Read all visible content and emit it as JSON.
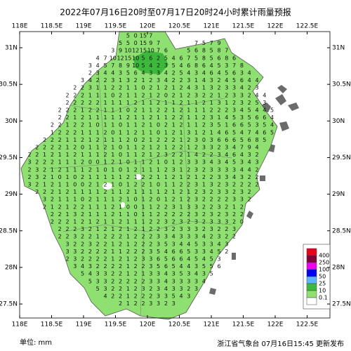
{
  "title": "2022年07月16日20时至07月17日20时24小时累计雨量预报",
  "unit_label": "单位: mm",
  "issuer": "浙江省气象台 07月16日15:45 更新发布",
  "lon_ticks": [
    {
      "value": 118,
      "label": "118E"
    },
    {
      "value": 118.5,
      "label": "118.5E"
    },
    {
      "value": 119,
      "label": "119E"
    },
    {
      "value": 119.5,
      "label": "119.5E"
    },
    {
      "value": 120,
      "label": "120E"
    },
    {
      "value": 120.5,
      "label": "120.5E"
    },
    {
      "value": 121,
      "label": "121E"
    },
    {
      "value": 121.5,
      "label": "121.5E"
    },
    {
      "value": 122,
      "label": "122E"
    },
    {
      "value": 122.5,
      "label": "122.5E"
    }
  ],
  "lat_ticks": [
    {
      "value": 31,
      "label": "31N"
    },
    {
      "value": 30.5,
      "label": "30.5N"
    },
    {
      "value": 30,
      "label": "30N"
    },
    {
      "value": 29.5,
      "label": "29.5N"
    },
    {
      "value": 29,
      "label": "29N"
    },
    {
      "value": 28.5,
      "label": "28.5N"
    },
    {
      "value": 28,
      "label": "28N"
    },
    {
      "value": 27.5,
      "label": "27.5N"
    }
  ],
  "legend": {
    "levels": [
      400,
      250,
      100,
      50,
      25,
      10,
      0.1
    ],
    "colors": [
      "#e8001c",
      "#82003c",
      "#f000f0",
      "#0000f5",
      "#5fb4ff",
      "#3db83d",
      "#8ee070",
      "#ffffff"
    ]
  },
  "grid": {
    "rows": [
      [
        null,
        null,
        null,
        null,
        null,
        null,
        null,
        null,
        null,
        null,
        null,
        null,
        null,
        5,
        0,
        15,
        7
      ],
      [
        null,
        null,
        null,
        null,
        null,
        null,
        null,
        null,
        null,
        null,
        null,
        null,
        5,
        5,
        0,
        15,
        9,
        7,
        null,
        null,
        null,
        null,
        7,
        5,
        7,
        9
      ],
      [
        null,
        null,
        null,
        null,
        null,
        null,
        null,
        null,
        null,
        null,
        null,
        3,
        9,
        10,
        12,
        15,
        10,
        7,
        6,
        null,
        null,
        5,
        6,
        8,
        5,
        8,
        7
      ],
      [
        null,
        null,
        null,
        null,
        null,
        null,
        null,
        null,
        null,
        4,
        7,
        10,
        12,
        15,
        10,
        5,
        6,
        2,
        5,
        4,
        6,
        7,
        5,
        8,
        5,
        6,
        8,
        6
      ],
      [
        null,
        null,
        null,
        null,
        null,
        null,
        null,
        null,
        3,
        4,
        5,
        7,
        8,
        9,
        10,
        5,
        4,
        2,
        3,
        5,
        4,
        6,
        8,
        6,
        4,
        5,
        3,
        7,
        8
      ],
      [
        null,
        null,
        null,
        null,
        null,
        null,
        null,
        null,
        2,
        3,
        4,
        4,
        3,
        5,
        6,
        4,
        3,
        3,
        4,
        2,
        5,
        4,
        3,
        4,
        6,
        4,
        5,
        6,
        3,
        4
      ],
      [
        null,
        null,
        null,
        null,
        null,
        null,
        null,
        3,
        4,
        2,
        2,
        3,
        1,
        3,
        2,
        1,
        2,
        3,
        4,
        2,
        2,
        3,
        1,
        4,
        3,
        2,
        4,
        5,
        6,
        4,
        4
      ],
      [
        null,
        null,
        null,
        null,
        null,
        null,
        2,
        2,
        3,
        1,
        1,
        2,
        2,
        1,
        1,
        0,
        2,
        1,
        2,
        1,
        2,
        4,
        3,
        1,
        3,
        2,
        3,
        3,
        4,
        2,
        3
      ],
      [
        null,
        null,
        null,
        null,
        null,
        2,
        2,
        2,
        1,
        1,
        1,
        0,
        2,
        1,
        1,
        2,
        1,
        2,
        0,
        2,
        1,
        2,
        3,
        2,
        2,
        1,
        2,
        3,
        3,
        2,
        4,
        4
      ],
      [
        null,
        null,
        null,
        null,
        null,
        2,
        2,
        2,
        2,
        2,
        1,
        1,
        1,
        1,
        2,
        1,
        1,
        2,
        1,
        1,
        2,
        1,
        1,
        2,
        1,
        3,
        1,
        2,
        3,
        2,
        5,
        3
      ],
      [
        null,
        null,
        null,
        null,
        2,
        2,
        2,
        1,
        2,
        2,
        1,
        1,
        1,
        0,
        2,
        1,
        1,
        2,
        2,
        1,
        2,
        1,
        1,
        1,
        2,
        2,
        2,
        3,
        4,
        5,
        4,
        4,
        5
      ],
      [
        null,
        null,
        null,
        null,
        2,
        2,
        1,
        2,
        1,
        1,
        1,
        1,
        1,
        2,
        1,
        1,
        2,
        1,
        1,
        2,
        2,
        1,
        1,
        2,
        3,
        1,
        4,
        5,
        3,
        5,
        6,
        6,
        4
      ],
      [
        null,
        null,
        null,
        2,
        2,
        1,
        2,
        2,
        1,
        0,
        1,
        1,
        0,
        1,
        1,
        2,
        1,
        0,
        2,
        1,
        2,
        1,
        1,
        2,
        3,
        5,
        1,
        6,
        6,
        5,
        3,
        5,
        4
      ],
      [
        null,
        null,
        null,
        1,
        2,
        2,
        2,
        1,
        1,
        1,
        2,
        0,
        1,
        1,
        2,
        1,
        1,
        0,
        1,
        2,
        1,
        3,
        1,
        2,
        1,
        4,
        6,
        5,
        4,
        7,
        4,
        6,
        5
      ],
      [
        null,
        null,
        2,
        2,
        2,
        1,
        1,
        2,
        1,
        2,
        1,
        1,
        1,
        2,
        0,
        2,
        1,
        2,
        2,
        2,
        1,
        2,
        3,
        0,
        3,
        6,
        6,
        6,
        5,
        6,
        8,
        5
      ],
      [
        null,
        2,
        2,
        2,
        2,
        1,
        2,
        0,
        1,
        1,
        2,
        1,
        0,
        1,
        1,
        2,
        1,
        2,
        1,
        2,
        2,
        1,
        2,
        3,
        3,
        2,
        3,
        4,
        7,
        9,
        4
      ],
      [
        2,
        2,
        1,
        2,
        1,
        1,
        2,
        1,
        1,
        1,
        2,
        1,
        0,
        1,
        1,
        2,
        1,
        2,
        3,
        2,
        2,
        1,
        4,
        2,
        2,
        3,
        4,
        6,
        4,
        3,
        2
      ],
      [
        3,
        2,
        2,
        2,
        1,
        1,
        1,
        2,
        0,
        0,
        1,
        2,
        1,
        0,
        1,
        1,
        2,
        1,
        0,
        1,
        2,
        3,
        3,
        3,
        4,
        3,
        4,
        5,
        3,
        4,
        3
      ],
      [
        2,
        3,
        2,
        1,
        2,
        1,
        1,
        1,
        2,
        1,
        0,
        1,
        0,
        1,
        2,
        1,
        1,
        1,
        2,
        3,
        1,
        2,
        3,
        2,
        3,
        3,
        3,
        3,
        4,
        4,
        2
      ],
      [
        2,
        3,
        2,
        1,
        0,
        1,
        0,
        2,
        1,
        1,
        1,
        1,
        1,
        2,
        1,
        2,
        2,
        1,
        1,
        2,
        1,
        2,
        1,
        2,
        2,
        3,
        3,
        4,
        3,
        2,
        2
      ],
      [
        3,
        2,
        1,
        2,
        1,
        1,
        0,
        0,
        2,
        1,
        2,
        1,
        0,
        1,
        2,
        2,
        1,
        0,
        1,
        1,
        2,
        2,
        3,
        1,
        3,
        2,
        3,
        2,
        2,
        2,
        2
      ],
      [
        null,
        2,
        2,
        2,
        1,
        2,
        1,
        1,
        1,
        1,
        2,
        1,
        1,
        2,
        1,
        1,
        1,
        1,
        2,
        1,
        2,
        1,
        2,
        3,
        2,
        3,
        3,
        2,
        3,
        2
      ],
      [
        null,
        null,
        3,
        2,
        1,
        1,
        1,
        0,
        2,
        1,
        1,
        1,
        2,
        1,
        0,
        1,
        2,
        0,
        1,
        2,
        1,
        2,
        3,
        2,
        2,
        2,
        2,
        3,
        3,
        2
      ],
      [
        null,
        null,
        2,
        1,
        2,
        1,
        2,
        2,
        1,
        1,
        1,
        2,
        1,
        0,
        0,
        1,
        1,
        2,
        2,
        3,
        1,
        3,
        3,
        2,
        2,
        3,
        2,
        1,
        2
      ],
      [
        null,
        null,
        null,
        2,
        2,
        1,
        3,
        2,
        1,
        1,
        1,
        2,
        1,
        1,
        0,
        1,
        1,
        2,
        2,
        2,
        2,
        2,
        3,
        2,
        3,
        2,
        3,
        2,
        2
      ],
      [
        null,
        null,
        null,
        2,
        2,
        2,
        1,
        2,
        1,
        2,
        1,
        1,
        2,
        1,
        1,
        1,
        2,
        2,
        3,
        2,
        3,
        2,
        3,
        2,
        3,
        3,
        3,
        2,
        0
      ],
      [
        null,
        null,
        null,
        null,
        2,
        2,
        2,
        3,
        2,
        1,
        2,
        1,
        2,
        1,
        2,
        1,
        2,
        2,
        3,
        2,
        3,
        3,
        3,
        2,
        3,
        2,
        2,
        3
      ],
      [
        null,
        null,
        null,
        null,
        2,
        2,
        3,
        2,
        2,
        1,
        2,
        2,
        2,
        1,
        2,
        2,
        2,
        3,
        3,
        4,
        3,
        3,
        3,
        4,
        2,
        3,
        2,
        2
      ],
      [
        null,
        null,
        null,
        null,
        null,
        3,
        2,
        2,
        3,
        2,
        2,
        1,
        2,
        1,
        2,
        2,
        2,
        3,
        5,
        3,
        4,
        4,
        5,
        3,
        3,
        4,
        3
      ],
      [
        null,
        null,
        null,
        null,
        null,
        3,
        3,
        2,
        2,
        2,
        2,
        1,
        1,
        2,
        2,
        2,
        3,
        5,
        4,
        6,
        6,
        5,
        3,
        3,
        4,
        5,
        2
      ],
      [
        null,
        null,
        null,
        null,
        null,
        2,
        3,
        2,
        2,
        2,
        2,
        1,
        2,
        1,
        2,
        3,
        3,
        6,
        5,
        6,
        6,
        4,
        5,
        4,
        5,
        3
      ],
      [
        null,
        null,
        null,
        null,
        null,
        null,
        3,
        4,
        3,
        2,
        2,
        2,
        2,
        1,
        2,
        2,
        3,
        5,
        6,
        5,
        4,
        4,
        3,
        5,
        5,
        6
      ],
      [
        null,
        null,
        null,
        null,
        null,
        null,
        null,
        5,
        4,
        3,
        3,
        2,
        2,
        1,
        2,
        1,
        3,
        3,
        4,
        3,
        5,
        3,
        4,
        3,
        5
      ],
      [
        null,
        null,
        null,
        null,
        null,
        null,
        null,
        null,
        5,
        3,
        3,
        2,
        2,
        2,
        2,
        2,
        3,
        3,
        4,
        3,
        3,
        3,
        3,
        4
      ],
      [
        null,
        null,
        null,
        null,
        null,
        null,
        null,
        null,
        null,
        5,
        3,
        2,
        2,
        1,
        2,
        3,
        2,
        3,
        4,
        3,
        3,
        2,
        3
      ],
      [
        null,
        null,
        null,
        null,
        null,
        null,
        null,
        null,
        null,
        null,
        4,
        2,
        2,
        1,
        2,
        2,
        2,
        3,
        3,
        5,
        4,
        3
      ],
      [
        null,
        null,
        null,
        null,
        null,
        null,
        null,
        null,
        null,
        null,
        null,
        null,
        2,
        1,
        2,
        2,
        3,
        3,
        2,
        3
      ]
    ]
  }
}
